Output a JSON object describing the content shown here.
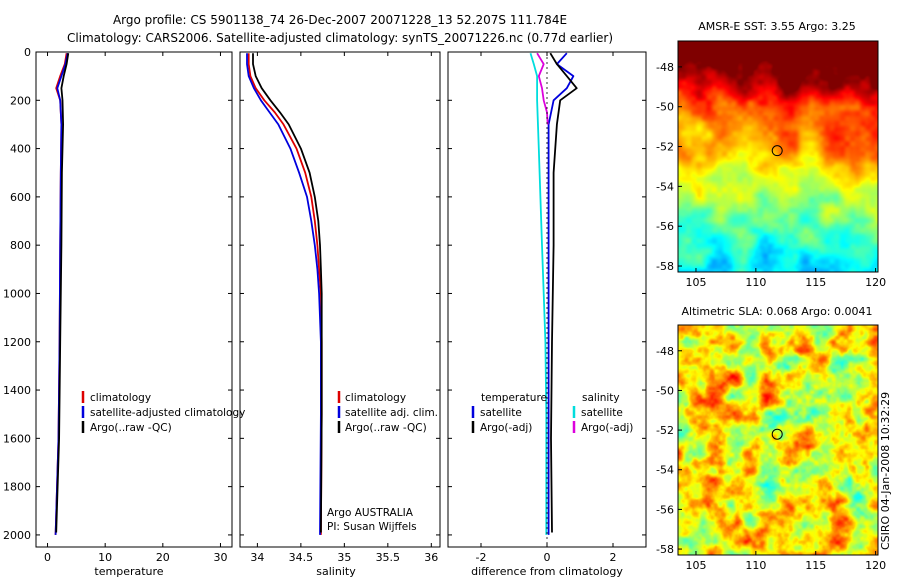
{
  "header": {
    "line1": "Argo profile: CS 5901138_74 26-Dec-2007 20071228_13 52.207S 111.784E",
    "line2": "Climatology: CARS2006. Satellite-adjusted climatology: synTS_20071226.nc (0.77d earlier)"
  },
  "side_label": "CSIRO 04-Jan-2008 10:32:29",
  "colors": {
    "climatology": "#dd0000",
    "satellite": "#0000dd",
    "argo": "#000000",
    "satellite_salinity": "#00dddd",
    "argo_salinity": "#dd00dd"
  },
  "chart_data": [
    {
      "type": "line",
      "name": "temperature-profile",
      "xlabel": "temperature",
      "ylabel": "",
      "xlim": [
        -2,
        32
      ],
      "ylim": [
        2050,
        0
      ],
      "xticks": [
        0,
        10,
        20,
        30
      ],
      "yticks": [
        0,
        200,
        400,
        600,
        800,
        1000,
        1200,
        1400,
        1600,
        1800,
        2000
      ],
      "legend": [
        "climatology",
        "satellite-adjusted climatology",
        "Argo(..raw -QC)"
      ],
      "series": [
        {
          "name": "climatology",
          "color_key": "climatology",
          "depth": [
            5,
            50,
            100,
            150,
            200,
            300,
            500,
            800,
            1200,
            1600,
            2000
          ],
          "values": [
            3.3,
            3.0,
            2.2,
            1.5,
            2.2,
            2.4,
            2.3,
            2.2,
            2.1,
            1.9,
            1.4
          ]
        },
        {
          "name": "satellite-adjusted climatology",
          "color_key": "satellite",
          "depth": [
            5,
            50,
            100,
            150,
            200,
            300,
            500,
            800,
            1200,
            1600,
            2000
          ],
          "values": [
            3.5,
            3.1,
            2.4,
            1.7,
            2.2,
            2.4,
            2.3,
            2.2,
            2.1,
            1.9,
            1.4
          ]
        },
        {
          "name": "Argo(..raw -QC)",
          "color_key": "argo",
          "depth": [
            5,
            50,
            100,
            150,
            200,
            300,
            500,
            800,
            1200,
            1600,
            1990
          ],
          "values": [
            3.6,
            3.3,
            2.8,
            2.4,
            2.6,
            2.7,
            2.5,
            2.4,
            2.2,
            2.0,
            1.5
          ]
        }
      ]
    },
    {
      "type": "line",
      "name": "salinity-profile",
      "xlabel": "salinity",
      "ylabel": "",
      "xlim": [
        33.8,
        36.1
      ],
      "ylim": [
        2050,
        0
      ],
      "xticks": [
        34,
        34.5,
        35,
        35.5,
        36
      ],
      "xticklabels": [
        "34",
        "34.5",
        "35",
        "35.5",
        "36"
      ],
      "legend": [
        "climatology",
        "satellite adj. clim.",
        "Argo(..raw -QC)"
      ],
      "annotations": [
        "Argo AUSTRALIA",
        "PI: Susan Wijffels"
      ],
      "series": [
        {
          "name": "climatology",
          "color_key": "climatology",
          "depth": [
            5,
            50,
            100,
            150,
            200,
            250,
            300,
            400,
            500,
            600,
            700,
            800,
            900,
            1000,
            1200,
            1500,
            2000
          ],
          "values": [
            33.9,
            33.9,
            33.92,
            33.98,
            34.08,
            34.2,
            34.3,
            34.45,
            34.55,
            34.62,
            34.66,
            34.69,
            34.71,
            34.73,
            34.74,
            34.74,
            34.73
          ]
        },
        {
          "name": "satellite adj. clim.",
          "color_key": "satellite",
          "depth": [
            5,
            50,
            100,
            150,
            200,
            250,
            300,
            400,
            500,
            600,
            700,
            800,
            900,
            1000,
            1200,
            1500,
            2000
          ],
          "values": [
            33.88,
            33.88,
            33.9,
            33.96,
            34.04,
            34.14,
            34.24,
            34.38,
            34.48,
            34.57,
            34.62,
            34.66,
            34.69,
            34.71,
            34.73,
            34.73,
            34.72
          ]
        },
        {
          "name": "Argo(..raw -QC)",
          "color_key": "argo",
          "depth": [
            5,
            50,
            100,
            150,
            200,
            250,
            300,
            400,
            500,
            600,
            700,
            800,
            900,
            1000,
            1200,
            1500,
            1990
          ],
          "values": [
            33.95,
            33.95,
            33.98,
            34.05,
            34.15,
            34.26,
            34.36,
            34.5,
            34.6,
            34.66,
            34.7,
            34.72,
            34.73,
            34.74,
            34.74,
            34.74,
            34.73
          ]
        }
      ]
    },
    {
      "type": "line",
      "name": "difference-profile",
      "xlabel": "difference from climatology",
      "ylabel": "",
      "xlim": [
        -3,
        3
      ],
      "ylim": [
        2050,
        0
      ],
      "xticks": [
        -2,
        0,
        2
      ],
      "legend_temperature_title": "temperature",
      "legend_salinity_title": "salinity",
      "legend_temperature": [
        "satellite",
        "Argo(-adj)"
      ],
      "legend_salinity": [
        "satellite",
        "Argo(-adj)"
      ],
      "series": [
        {
          "name": "temperature satellite",
          "color_key": "satellite",
          "depth": [
            5,
            50,
            100,
            150,
            200,
            300,
            500,
            800,
            1200,
            1600,
            2000
          ],
          "values": [
            0.6,
            0.3,
            0.8,
            0.6,
            0.2,
            0.05,
            0.05,
            0.05,
            0.05,
            0.05,
            0.05
          ]
        },
        {
          "name": "temperature Argo(-adj)",
          "color_key": "argo",
          "depth": [
            5,
            50,
            100,
            150,
            200,
            300,
            500,
            800,
            1200,
            1600,
            1990
          ],
          "values": [
            0.1,
            0.3,
            0.6,
            0.9,
            0.4,
            0.3,
            0.2,
            0.2,
            0.15,
            0.12,
            0.15
          ]
        },
        {
          "name": "salinity satellite",
          "color_key": "satellite_salinity",
          "depth": [
            5,
            50,
            100,
            200,
            400,
            600,
            800,
            1000,
            1200,
            1500,
            2000
          ],
          "values": [
            -0.5,
            -0.4,
            -0.3,
            -0.3,
            -0.25,
            -0.2,
            -0.15,
            -0.1,
            -0.05,
            -0.02,
            -0.02
          ]
        },
        {
          "name": "salinity Argo(-adj)",
          "color_key": "argo_salinity",
          "depth": [
            5,
            50,
            100,
            150,
            200,
            250,
            300
          ],
          "values": [
            -0.3,
            -0.1,
            -0.25,
            -0.15,
            -0.1,
            0.0,
            0.02
          ]
        }
      ]
    },
    {
      "type": "heatmap",
      "name": "sst-map",
      "title": "AMSR-E SST: 3.55 Argo: 3.25",
      "xlim": [
        103.5,
        120.2
      ],
      "ylim": [
        -58.3,
        -46.7
      ],
      "xticks": [
        105,
        110,
        115,
        120
      ],
      "yticks": [
        -48,
        -50,
        -52,
        -54,
        -56,
        -58
      ],
      "marker": {
        "lon": 111.784,
        "lat": -52.207
      }
    },
    {
      "type": "heatmap",
      "name": "sla-map",
      "title": "Altimetric SLA: 0.068 Argo: 0.0041",
      "xlim": [
        103.5,
        120.2
      ],
      "ylim": [
        -58.3,
        -46.7
      ],
      "xticks": [
        105,
        110,
        115,
        120
      ],
      "yticks": [
        -48,
        -50,
        -52,
        -54,
        -56,
        -58
      ],
      "marker": {
        "lon": 111.784,
        "lat": -52.207
      }
    }
  ]
}
